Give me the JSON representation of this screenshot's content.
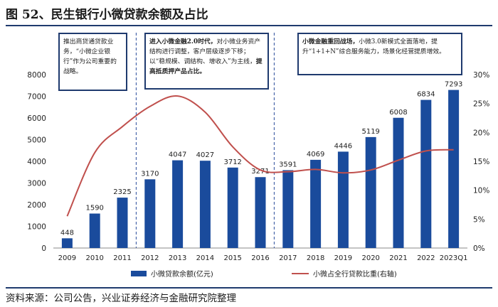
{
  "figure": {
    "title": "图 52、民生银行小微贷款余额及占比",
    "source": "资料来源：公司公告，兴业证券经济与金融研究院整理"
  },
  "annotations": {
    "box1": "推出商贷通贷款业务，“小微企业银行”作为公司重要的战略。",
    "box2_bold": "进入小微金融2.0时代，",
    "box2_text": "对小微业务资产结构进行调整，客户层级逐步下移；以“稳规模、调结构、增收入”为主线，",
    "box2_bold2": "提高抵质押产品占比。",
    "box3_bold": "小微金融重回战场，",
    "box3_text": "小微3.0新模式全面落地，提升“1+1+N”综合服务能力，场景化经营提质增效。"
  },
  "colors": {
    "bar": "#1a4b9c",
    "line": "#c0504d",
    "divider": "#2a4d9b"
  },
  "chart_data": {
    "type": "bar",
    "categories": [
      "2009",
      "2010",
      "2011",
      "2012",
      "2013",
      "2014",
      "2015",
      "2016",
      "2017",
      "2018",
      "2019",
      "2020",
      "2021",
      "2022",
      "2023Q1"
    ],
    "series": [
      {
        "name": "小微贷款余额(亿元)",
        "type": "bar",
        "axis": "left",
        "values": [
          448,
          1590,
          2325,
          3170,
          4047,
          4027,
          3712,
          3271,
          3591,
          4069,
          4446,
          5119,
          6008,
          6834,
          7293
        ]
      },
      {
        "name": "小微占全行贷款比重(右轴)",
        "type": "line",
        "axis": "right",
        "values": [
          5.5,
          16.5,
          21.0,
          24.5,
          26.3,
          23.5,
          17.5,
          13.5,
          13.2,
          13.6,
          13.0,
          13.5,
          15.2,
          16.8,
          17.0
        ]
      }
    ],
    "yleft": {
      "min": 0,
      "max": 8000,
      "ticks": [
        0,
        1000,
        2000,
        3000,
        4000,
        5000,
        6000,
        7000,
        8000
      ]
    },
    "yright": {
      "min": 0,
      "max": 30,
      "ticks": [
        "0%",
        "5%",
        "10%",
        "15%",
        "20%",
        "25%",
        "30%"
      ]
    },
    "dividers_after": [
      "2011",
      "2016"
    ],
    "legend_position": "bottom",
    "grid": false
  }
}
